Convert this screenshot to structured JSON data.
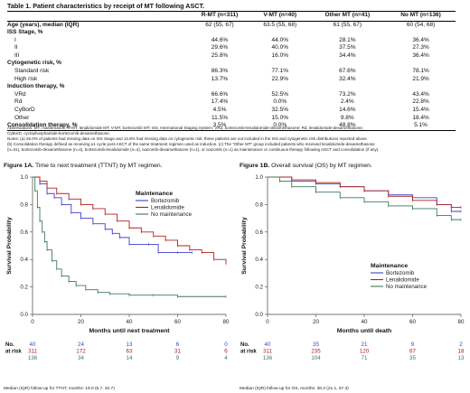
{
  "table": {
    "title": "Table 1. Patient characteristics by receipt of MT following ASCT.",
    "headers": [
      "",
      "R-MT (n=311)",
      "V-MT (n=40)",
      "Other MT (n=41)",
      "No MT (n=136)"
    ],
    "rows": [
      {
        "label": "Age (years), median (IQR)",
        "style": "bold",
        "values": [
          "62 (55, 67)",
          "63.5 (55, 68)",
          "61 (55, 67)",
          "60 (54, 68)"
        ]
      },
      {
        "label": "ISS Stage, %",
        "style": "bold",
        "values": [
          "",
          "",
          "",
          ""
        ]
      },
      {
        "label": "I",
        "style": "sub",
        "values": [
          "44.6%",
          "44.0%",
          "28.1%",
          "36.4%"
        ]
      },
      {
        "label": "II",
        "style": "sub",
        "values": [
          "29.6%",
          "40.0%",
          "37.5%",
          "27.3%"
        ]
      },
      {
        "label": "III",
        "style": "sub",
        "values": [
          "25.8%",
          "16.0%",
          "34.4%",
          "36.4%"
        ]
      },
      {
        "label": "Cytogenetic risk, %",
        "style": "bold",
        "values": [
          "",
          "",
          "",
          ""
        ]
      },
      {
        "label": "Standard risk",
        "style": "sub",
        "values": [
          "86.3%",
          "77.1%",
          "67.6%",
          "78.1%"
        ]
      },
      {
        "label": "High risk",
        "style": "sub",
        "values": [
          "13.7%",
          "22.9%",
          "32.4%",
          "21.9%"
        ]
      },
      {
        "label": "Induction therapy, %",
        "style": "bold",
        "values": [
          "",
          "",
          "",
          ""
        ]
      },
      {
        "label": "VRd",
        "style": "sub",
        "values": [
          "66.6%",
          "52.5%",
          "73.2%",
          "43.4%"
        ]
      },
      {
        "label": "Rd",
        "style": "sub",
        "values": [
          "17.4%",
          "0.0%",
          "2.4%",
          "22.8%"
        ]
      },
      {
        "label": "CyBorD",
        "style": "sub",
        "values": [
          "4.5%",
          "32.5%",
          "14.6%",
          "15.4%"
        ]
      },
      {
        "label": "Other",
        "style": "sub",
        "values": [
          "11.5%",
          "15.0%",
          "9.8%",
          "18.4%"
        ]
      },
      {
        "label": "Consolidation therapy, %",
        "style": "bold",
        "values": [
          "3.5%",
          "0.0%",
          "48.8%",
          "5.1%"
        ]
      }
    ]
  },
  "notes": [
    "Abbreviations: MT, maintenance; R-MT, lenalidomide MT; V-MT, bortezomib MT; ISS, International Staging System; VRd, bortezomib-lenalidomide-dexamethasone; Rd, lenalidomide-dexamethasone;",
    "CyBorD, cyclophosphamide-bortezomib-dexamethasone.",
    "Notes: (a) 25.0% of patients had missing data on ISS Stage and 13.8% had missing data on cytogenetic risk; these patients are not included in the ISS and cytogenetic risk distributions reported above.",
    "(b) Consolidation therapy defined as receiving ≥1 cycle post-ASCT of the same treatment regimen used as induction. (c) The “Other MT” group included patients who received lenalidomide-dexamethasone",
    "(n=31), bortezomib-dexamethasone (n=4), bortezomib-lenalidomide (n=4), ixazomib-dexamethasone (n=1), or ixazomib (n=1) as maintenance or continuous therapy following ASCT and consolidation (if any)."
  ],
  "figure_a": {
    "label": "Figure 1A.",
    "title": "Time to next treatment (TTNT) by MT regimen.",
    "footer": "Median (IQR) follow-up for TTNT, months: 19.0 (6.7, 32.7)",
    "legend_title": "Maintenance",
    "legend_position": "top-right",
    "risk_label_no": "No.",
    "risk_label_at_risk": "at risk",
    "risk_table": [
      [
        "40",
        "24",
        "13",
        "6",
        "0"
      ],
      [
        "311",
        "172",
        "63",
        "31",
        "6"
      ],
      [
        "136",
        "34",
        "14",
        "9",
        "4"
      ]
    ]
  },
  "figure_b": {
    "label": "Figure 1B.",
    "title": "Overall survival (OS) by MT regimen.",
    "footer": "Median (IQR) follow-up for OS, months: 36.3 (21.1, 57.3)",
    "legend_title": "Maintenance",
    "legend_position": "bottom-right",
    "risk_label_no": "No.",
    "risk_label_at_risk": "at risk",
    "risk_table": [
      [
        "40",
        "35",
        "21",
        "9",
        "2"
      ],
      [
        "311",
        "235",
        "120",
        "67",
        "18"
      ],
      [
        "136",
        "104",
        "71",
        "35",
        "13"
      ]
    ]
  },
  "chart_data": [
    {
      "type": "line",
      "title": "Time to next treatment (TTNT) by MT regimen.",
      "xlabel": "Months until next treatment",
      "ylabel": "Survival Probability",
      "xlim": [
        0,
        80
      ],
      "ylim": [
        0,
        1.0
      ],
      "x_ticks": [
        "0",
        "20",
        "40",
        "60",
        "80"
      ],
      "y_ticks": [
        "0.0",
        "0.2",
        "0.4",
        "0.6",
        "0.8",
        "1.0"
      ],
      "grid": false,
      "legend_title": "Maintenance",
      "legend_position": "top-right",
      "series": [
        {
          "name": "Bortezomib",
          "color": "#4040d0",
          "points": [
            [
              0,
              1.0
            ],
            [
              3,
              0.95
            ],
            [
              6,
              0.88
            ],
            [
              9,
              0.85
            ],
            [
              12,
              0.8
            ],
            [
              16,
              0.74
            ],
            [
              20,
              0.7
            ],
            [
              25,
              0.66
            ],
            [
              30,
              0.62
            ],
            [
              33,
              0.59
            ],
            [
              36,
              0.56
            ],
            [
              40,
              0.51
            ],
            [
              48,
              0.51
            ],
            [
              52,
              0.45
            ],
            [
              60,
              0.45
            ],
            [
              66,
              0.45
            ]
          ]
        },
        {
          "name": "Lenalidomide",
          "color": "#b02020",
          "points": [
            [
              0,
              1.0
            ],
            [
              3,
              0.97
            ],
            [
              6,
              0.92
            ],
            [
              10,
              0.88
            ],
            [
              15,
              0.84
            ],
            [
              20,
              0.8
            ],
            [
              25,
              0.77
            ],
            [
              30,
              0.73
            ],
            [
              35,
              0.68
            ],
            [
              40,
              0.63
            ],
            [
              45,
              0.6
            ],
            [
              50,
              0.57
            ],
            [
              55,
              0.54
            ],
            [
              60,
              0.5
            ],
            [
              65,
              0.47
            ],
            [
              70,
              0.45
            ],
            [
              75,
              0.4
            ],
            [
              80,
              0.37
            ]
          ]
        },
        {
          "name": "No maintenance",
          "color": "#3a7a5a",
          "points": [
            [
              0,
              1.0
            ],
            [
              1,
              0.9
            ],
            [
              2,
              0.78
            ],
            [
              3,
              0.68
            ],
            [
              4,
              0.6
            ],
            [
              5,
              0.53
            ],
            [
              6,
              0.47
            ],
            [
              8,
              0.39
            ],
            [
              10,
              0.33
            ],
            [
              12,
              0.28
            ],
            [
              15,
              0.24
            ],
            [
              18,
              0.21
            ],
            [
              22,
              0.18
            ],
            [
              27,
              0.16
            ],
            [
              32,
              0.15
            ],
            [
              40,
              0.14
            ],
            [
              50,
              0.14
            ],
            [
              60,
              0.13
            ],
            [
              80,
              0.13
            ]
          ]
        }
      ]
    },
    {
      "type": "line",
      "title": "Overall survival (OS) by MT regimen.",
      "xlabel": "Months until death",
      "ylabel": "Survival Probability",
      "xlim": [
        0,
        80
      ],
      "ylim": [
        0,
        1.0
      ],
      "x_ticks": [
        "0",
        "20",
        "40",
        "60",
        "80"
      ],
      "y_ticks": [
        "0.0",
        "0.2",
        "0.4",
        "0.6",
        "0.8",
        "1.0"
      ],
      "grid": false,
      "legend_title": "Maintenance",
      "legend_position": "bottom-right",
      "series": [
        {
          "name": "Bortezomib",
          "color": "#4040d0",
          "points": [
            [
              0,
              1.0
            ],
            [
              10,
              0.97
            ],
            [
              20,
              0.95
            ],
            [
              30,
              0.93
            ],
            [
              40,
              0.9
            ],
            [
              50,
              0.87
            ],
            [
              60,
              0.85
            ],
            [
              70,
              0.8
            ],
            [
              76,
              0.75
            ],
            [
              80,
              0.75
            ]
          ]
        },
        {
          "name": "Lenalidomide",
          "color": "#b02020",
          "points": [
            [
              0,
              1.0
            ],
            [
              10,
              0.98
            ],
            [
              20,
              0.96
            ],
            [
              30,
              0.93
            ],
            [
              40,
              0.9
            ],
            [
              50,
              0.86
            ],
            [
              60,
              0.83
            ],
            [
              70,
              0.8
            ],
            [
              76,
              0.78
            ],
            [
              80,
              0.78
            ]
          ]
        },
        {
          "name": "No maintenance",
          "color": "#3a7a5a",
          "points": [
            [
              0,
              1.0
            ],
            [
              5,
              0.97
            ],
            [
              10,
              0.93
            ],
            [
              20,
              0.89
            ],
            [
              30,
              0.85
            ],
            [
              40,
              0.82
            ],
            [
              50,
              0.79
            ],
            [
              60,
              0.77
            ],
            [
              70,
              0.72
            ],
            [
              76,
              0.69
            ],
            [
              80,
              0.69
            ]
          ]
        }
      ]
    }
  ]
}
